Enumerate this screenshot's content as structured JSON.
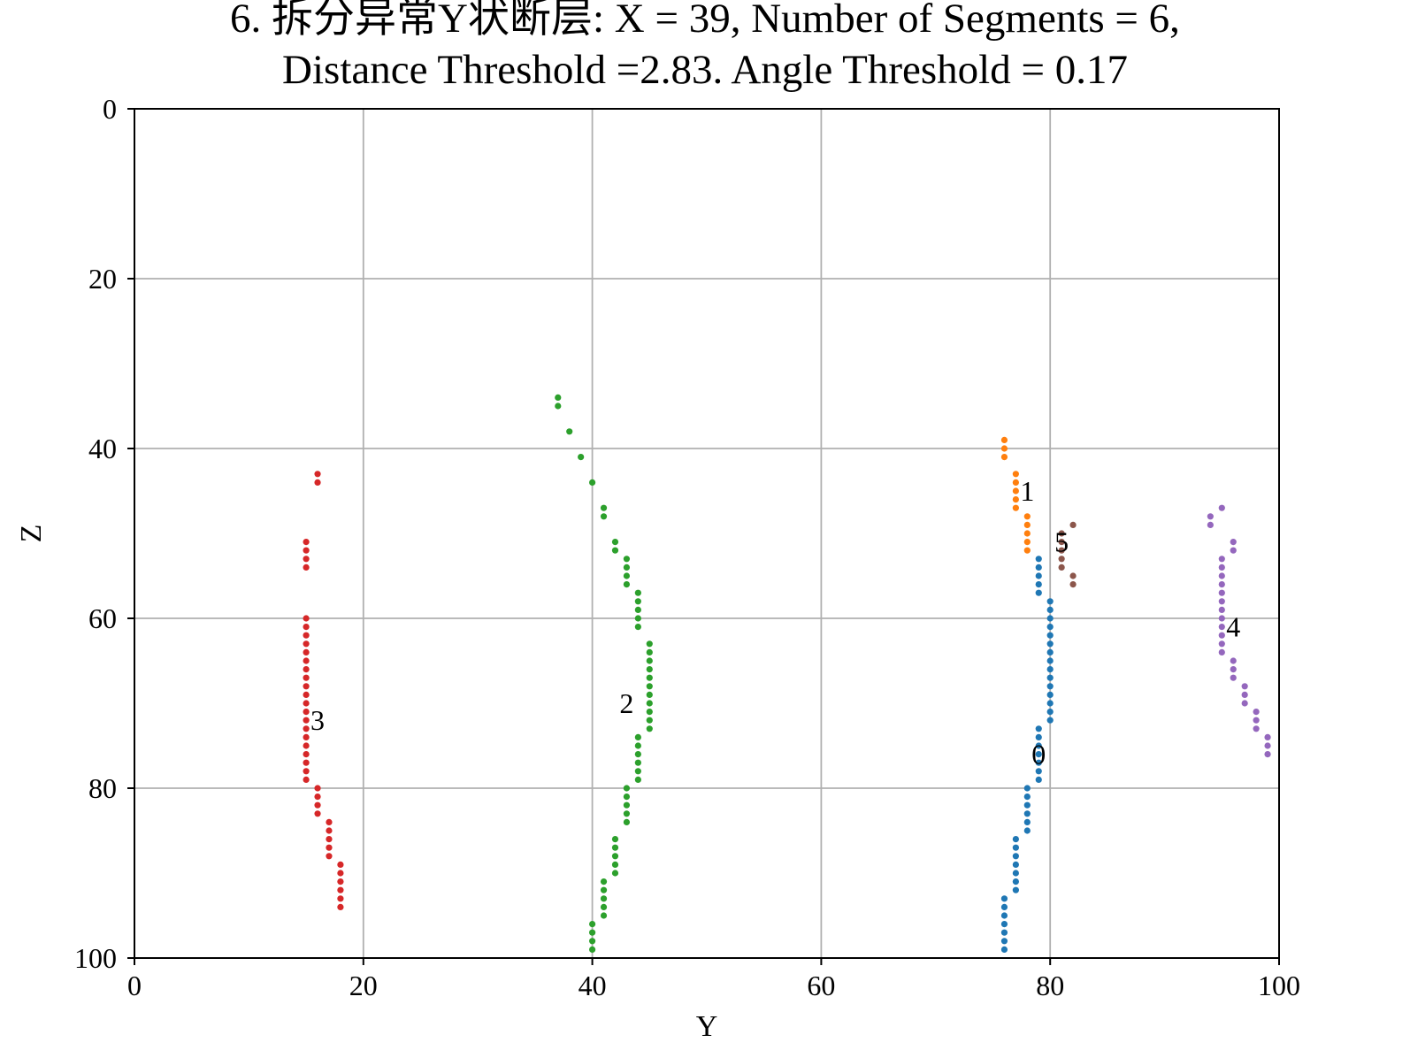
{
  "chart_data": {
    "type": "scatter",
    "title_lines": [
      "6. 拆分异常Y状断层: X = 39, Number of Segments = 6,",
      "Distance Threshold =2.83. Angle Threshold = 0.17"
    ],
    "xlabel": "Y",
    "ylabel": "Z",
    "xlim": [
      0,
      100
    ],
    "ylim": [
      100,
      0
    ],
    "y_inverted": true,
    "grid": true,
    "xticks": [
      0,
      20,
      40,
      60,
      80,
      100
    ],
    "yticks": [
      0,
      20,
      40,
      60,
      80,
      100
    ],
    "series": [
      {
        "label": "0",
        "color": "#1f77b4",
        "label_pos": [
          79,
          76
        ],
        "points": [
          [
            79,
            53
          ],
          [
            79,
            54
          ],
          [
            79,
            55
          ],
          [
            79,
            56
          ],
          [
            79,
            57
          ],
          [
            80,
            58
          ],
          [
            80,
            59
          ],
          [
            80,
            60
          ],
          [
            80,
            61
          ],
          [
            80,
            62
          ],
          [
            80,
            63
          ],
          [
            80,
            64
          ],
          [
            80,
            65
          ],
          [
            80,
            66
          ],
          [
            80,
            67
          ],
          [
            80,
            68
          ],
          [
            80,
            69
          ],
          [
            80,
            70
          ],
          [
            80,
            71
          ],
          [
            80,
            72
          ],
          [
            79,
            73
          ],
          [
            79,
            74
          ],
          [
            79,
            75
          ],
          [
            79,
            76
          ],
          [
            79,
            77
          ],
          [
            79,
            78
          ],
          [
            79,
            79
          ],
          [
            78,
            80
          ],
          [
            78,
            81
          ],
          [
            78,
            82
          ],
          [
            78,
            83
          ],
          [
            78,
            84
          ],
          [
            78,
            85
          ],
          [
            77,
            86
          ],
          [
            77,
            87
          ],
          [
            77,
            88
          ],
          [
            77,
            89
          ],
          [
            77,
            90
          ],
          [
            77,
            91
          ],
          [
            77,
            92
          ],
          [
            76,
            93
          ],
          [
            76,
            94
          ],
          [
            76,
            95
          ],
          [
            76,
            96
          ],
          [
            76,
            97
          ],
          [
            76,
            98
          ],
          [
            76,
            99
          ]
        ]
      },
      {
        "label": "1",
        "color": "#ff7f0e",
        "label_pos": [
          78,
          45
        ],
        "points": [
          [
            76,
            39
          ],
          [
            76,
            40
          ],
          [
            76,
            41
          ],
          [
            77,
            43
          ],
          [
            77,
            44
          ],
          [
            77,
            45
          ],
          [
            77,
            46
          ],
          [
            77,
            47
          ],
          [
            78,
            48
          ],
          [
            78,
            49
          ],
          [
            78,
            50
          ],
          [
            78,
            51
          ],
          [
            78,
            52
          ]
        ]
      },
      {
        "label": "2",
        "color": "#2ca02c",
        "label_pos": [
          43,
          70
        ],
        "points": [
          [
            37,
            34
          ],
          [
            37,
            35
          ],
          [
            38,
            38
          ],
          [
            39,
            41
          ],
          [
            40,
            44
          ],
          [
            41,
            47
          ],
          [
            41,
            48
          ],
          [
            42,
            51
          ],
          [
            42,
            52
          ],
          [
            43,
            53
          ],
          [
            43,
            54
          ],
          [
            43,
            55
          ],
          [
            43,
            56
          ],
          [
            44,
            57
          ],
          [
            44,
            58
          ],
          [
            44,
            59
          ],
          [
            44,
            60
          ],
          [
            44,
            61
          ],
          [
            45,
            63
          ],
          [
            45,
            64
          ],
          [
            45,
            65
          ],
          [
            45,
            66
          ],
          [
            45,
            67
          ],
          [
            45,
            68
          ],
          [
            45,
            69
          ],
          [
            45,
            70
          ],
          [
            45,
            71
          ],
          [
            45,
            72
          ],
          [
            45,
            73
          ],
          [
            44,
            74
          ],
          [
            44,
            75
          ],
          [
            44,
            76
          ],
          [
            44,
            77
          ],
          [
            44,
            78
          ],
          [
            44,
            79
          ],
          [
            43,
            80
          ],
          [
            43,
            81
          ],
          [
            43,
            82
          ],
          [
            43,
            83
          ],
          [
            43,
            84
          ],
          [
            42,
            86
          ],
          [
            42,
            87
          ],
          [
            42,
            88
          ],
          [
            42,
            89
          ],
          [
            42,
            90
          ],
          [
            41,
            91
          ],
          [
            41,
            92
          ],
          [
            41,
            93
          ],
          [
            41,
            94
          ],
          [
            41,
            95
          ],
          [
            40,
            96
          ],
          [
            40,
            97
          ],
          [
            40,
            98
          ],
          [
            40,
            99
          ]
        ]
      },
      {
        "label": "3",
        "color": "#d62728",
        "label_pos": [
          16,
          72
        ],
        "points": [
          [
            16,
            43
          ],
          [
            16,
            44
          ],
          [
            15,
            51
          ],
          [
            15,
            52
          ],
          [
            15,
            53
          ],
          [
            15,
            54
          ],
          [
            15,
            60
          ],
          [
            15,
            61
          ],
          [
            15,
            62
          ],
          [
            15,
            63
          ],
          [
            15,
            64
          ],
          [
            15,
            65
          ],
          [
            15,
            66
          ],
          [
            15,
            67
          ],
          [
            15,
            68
          ],
          [
            15,
            69
          ],
          [
            15,
            70
          ],
          [
            15,
            71
          ],
          [
            15,
            72
          ],
          [
            15,
            73
          ],
          [
            15,
            74
          ],
          [
            15,
            75
          ],
          [
            15,
            76
          ],
          [
            15,
            77
          ],
          [
            15,
            78
          ],
          [
            15,
            79
          ],
          [
            16,
            80
          ],
          [
            16,
            81
          ],
          [
            16,
            82
          ],
          [
            16,
            83
          ],
          [
            17,
            84
          ],
          [
            17,
            85
          ],
          [
            17,
            86
          ],
          [
            17,
            87
          ],
          [
            17,
            88
          ],
          [
            18,
            89
          ],
          [
            18,
            90
          ],
          [
            18,
            91
          ],
          [
            18,
            92
          ],
          [
            18,
            93
          ],
          [
            18,
            94
          ]
        ]
      },
      {
        "label": "4",
        "color": "#9467bd",
        "label_pos": [
          96,
          61
        ],
        "points": [
          [
            94,
            48
          ],
          [
            94,
            49
          ],
          [
            95,
            47
          ],
          [
            96,
            51
          ],
          [
            96,
            52
          ],
          [
            95,
            53
          ],
          [
            95,
            54
          ],
          [
            95,
            55
          ],
          [
            95,
            56
          ],
          [
            95,
            57
          ],
          [
            95,
            58
          ],
          [
            95,
            59
          ],
          [
            95,
            60
          ],
          [
            95,
            61
          ],
          [
            95,
            62
          ],
          [
            95,
            63
          ],
          [
            95,
            64
          ],
          [
            96,
            65
          ],
          [
            96,
            66
          ],
          [
            96,
            67
          ],
          [
            97,
            68
          ],
          [
            97,
            69
          ],
          [
            97,
            70
          ],
          [
            98,
            71
          ],
          [
            98,
            72
          ],
          [
            98,
            73
          ],
          [
            99,
            74
          ],
          [
            99,
            75
          ],
          [
            99,
            76
          ]
        ]
      },
      {
        "label": "5",
        "color": "#8c564b",
        "label_pos": [
          81,
          51
        ],
        "points": [
          [
            81,
            50
          ],
          [
            81,
            51
          ],
          [
            81,
            52
          ],
          [
            81,
            53
          ],
          [
            81,
            54
          ],
          [
            82,
            49
          ],
          [
            82,
            55
          ],
          [
            82,
            56
          ]
        ]
      }
    ]
  }
}
